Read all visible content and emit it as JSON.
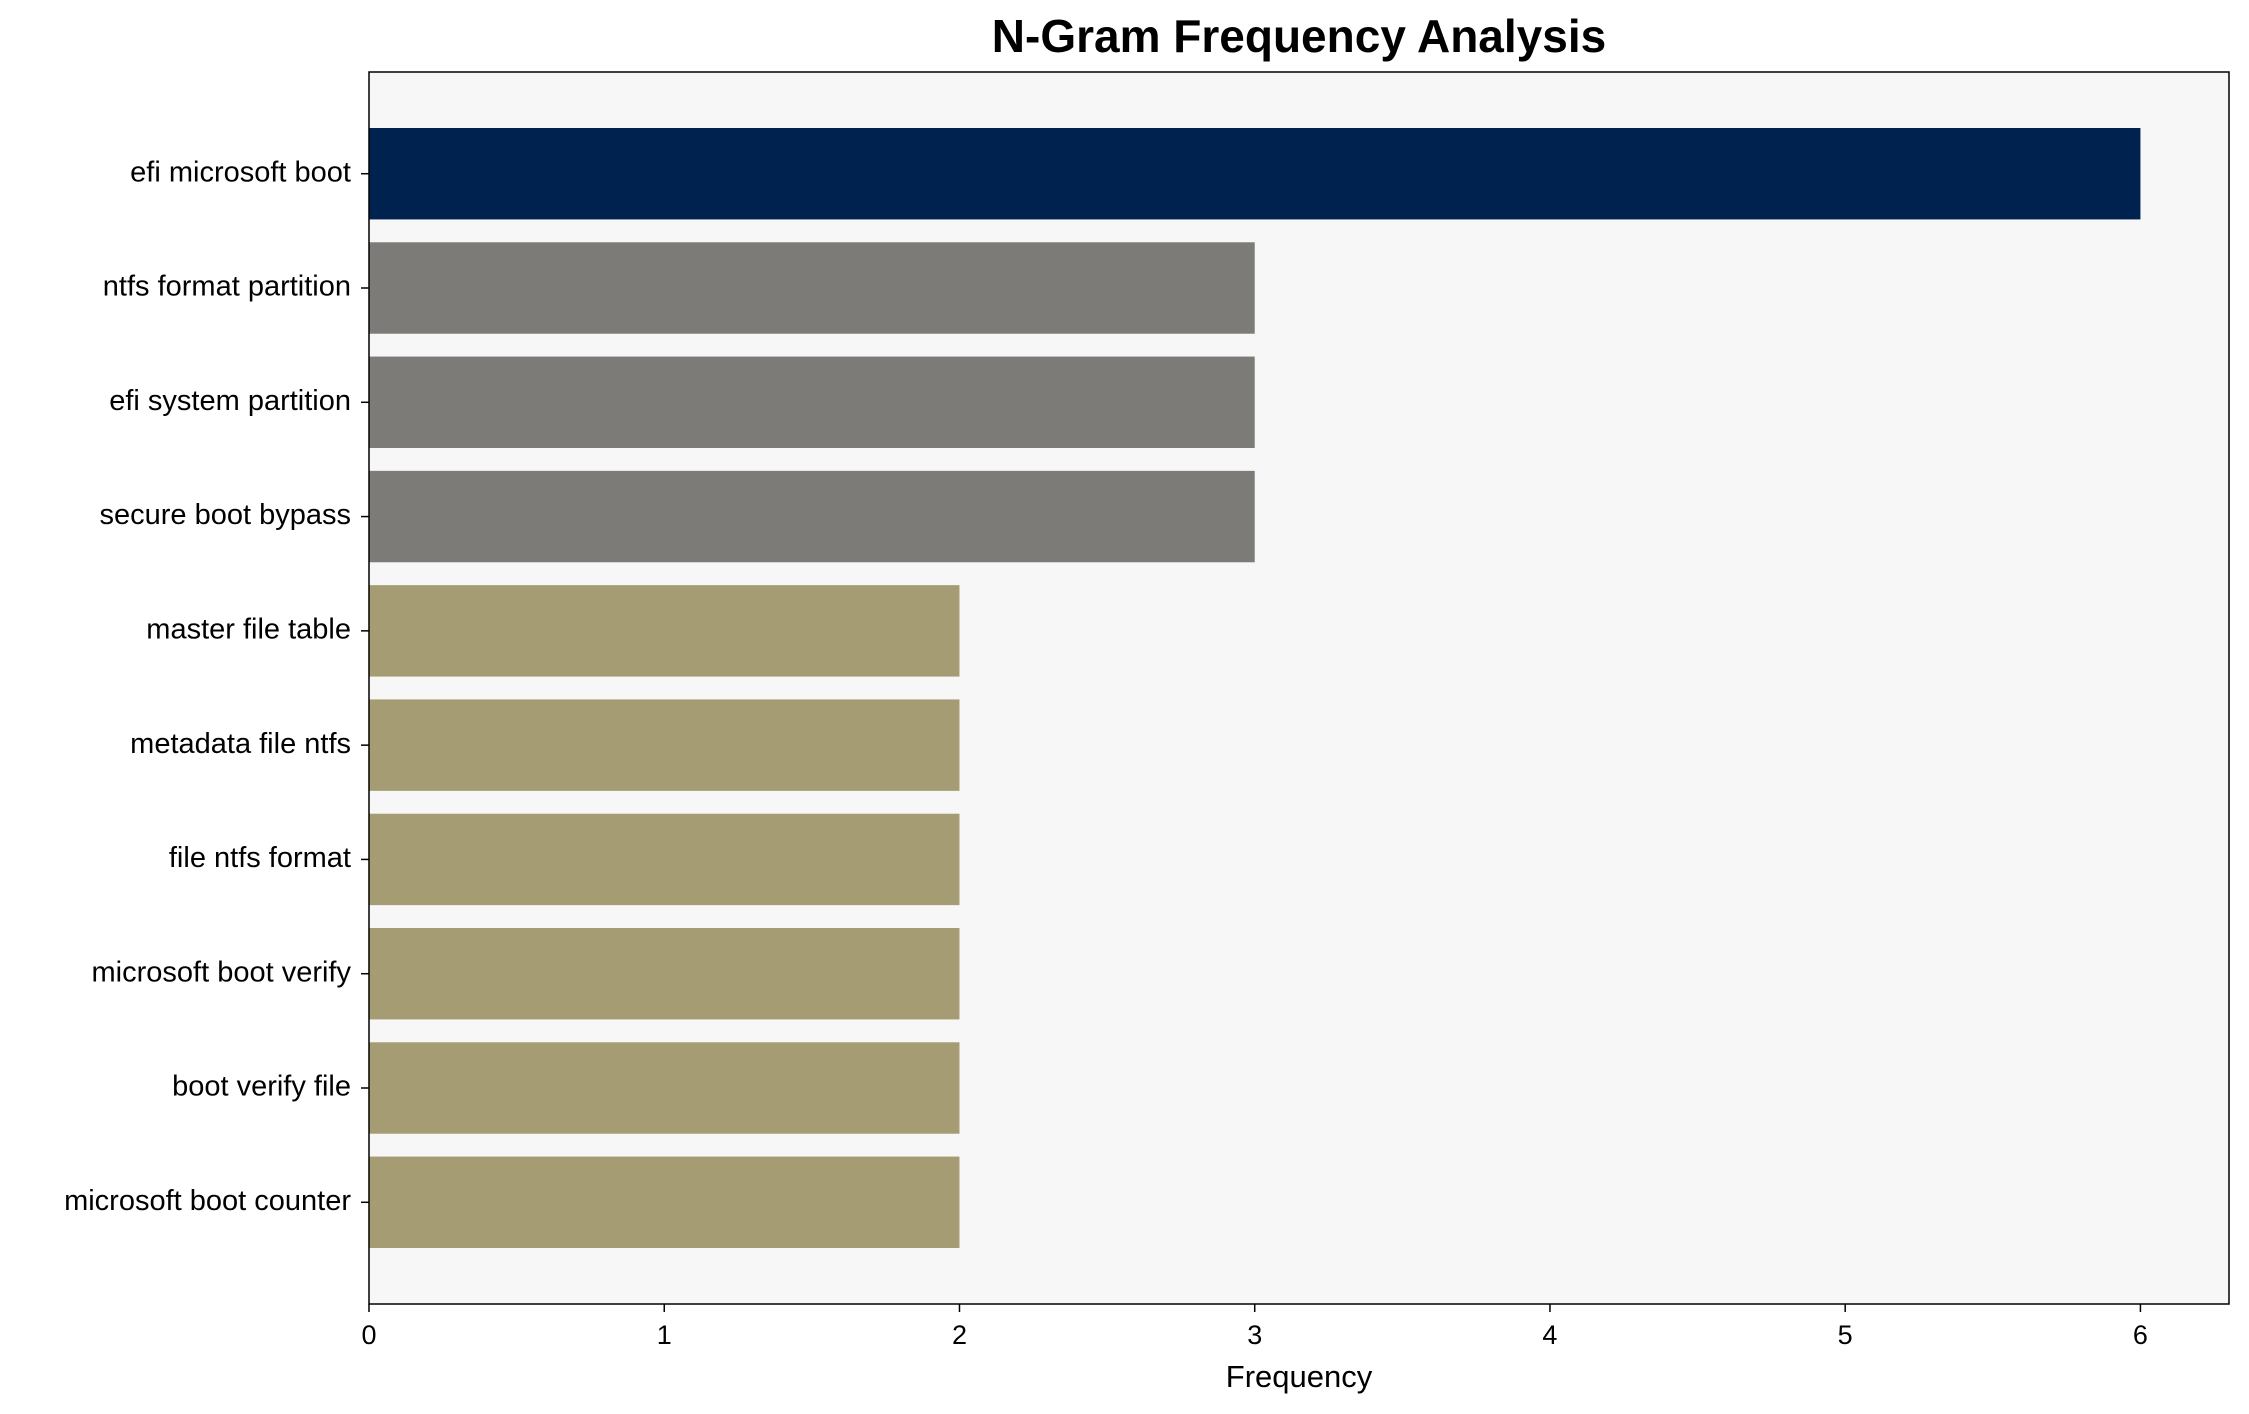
{
  "chart_data": {
    "type": "barh",
    "title": "N-Gram Frequency Analysis",
    "xlabel": "Frequency",
    "categories": [
      "efi microsoft boot",
      "ntfs format partition",
      "efi system partition",
      "secure boot bypass",
      "master file table",
      "metadata file ntfs",
      "file ntfs format",
      "microsoft boot verify",
      "boot verify file",
      "microsoft boot counter"
    ],
    "values": [
      6,
      3,
      3,
      3,
      2,
      2,
      2,
      2,
      2,
      2
    ],
    "colors": [
      "#00224e",
      "#7c7b78",
      "#7c7b78",
      "#7c7b78",
      "#a59c74",
      "#a59c74",
      "#a59c74",
      "#a59c74",
      "#a59c74",
      "#a59c74"
    ],
    "xlim": [
      0,
      6.3
    ],
    "xticks": [
      0,
      1,
      2,
      3,
      4,
      5,
      6
    ],
    "background": "#f7f7f7"
  }
}
